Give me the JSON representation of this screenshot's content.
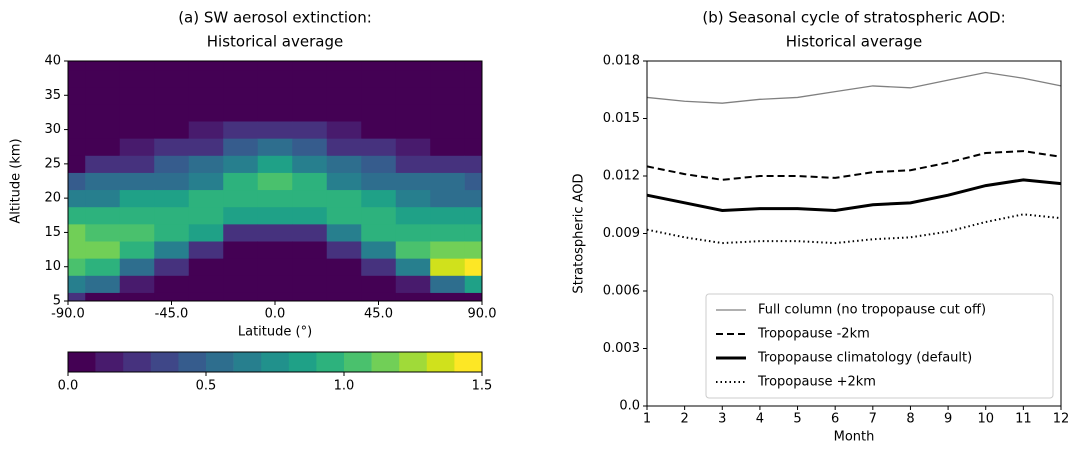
{
  "chart_data": [
    {
      "type": "contour",
      "title": [
        "(a) SW aerosol extinction:",
        "Historical average"
      ],
      "x_label": "Latitude (°)",
      "y_label": "Altitude (km)",
      "xlim": [
        -90,
        90
      ],
      "ylim": [
        5,
        40
      ],
      "xticks": [
        {
          "value": -90,
          "label": "-90.0"
        },
        {
          "value": -45,
          "label": "-45.0"
        },
        {
          "value": 0,
          "label": "0.0"
        },
        {
          "value": 45,
          "label": "45.0"
        },
        {
          "value": 90,
          "label": "90.0"
        }
      ],
      "yticks": [
        5,
        10,
        15,
        20,
        25,
        30,
        35,
        40
      ],
      "x": [
        -90,
        -75,
        -60,
        -45,
        -30,
        -15,
        0,
        15,
        30,
        45,
        60,
        75,
        90
      ],
      "y": [
        5,
        7.5,
        10,
        12.5,
        15,
        17.5,
        20,
        22.5,
        25,
        27.5,
        30,
        32.5,
        35,
        37.5,
        40
      ],
      "z": [
        [
          0.3,
          0.7,
          1.0,
          1.1,
          1.1,
          0.9,
          0.7,
          0.4,
          0,
          0,
          0,
          0,
          0,
          0,
          0
        ],
        [
          0,
          0.5,
          0.9,
          1.1,
          1.0,
          0.9,
          0.7,
          0.5,
          0.2,
          0,
          0,
          0,
          0,
          0,
          0
        ],
        [
          0,
          0.1,
          0.6,
          0.9,
          1.0,
          0.9,
          0.8,
          0.6,
          0.3,
          0.1,
          0,
          0,
          0,
          0,
          0
        ],
        [
          0,
          0,
          0.3,
          0.7,
          0.9,
          0.9,
          0.8,
          0.6,
          0.4,
          0.2,
          0,
          0,
          0,
          0,
          0
        ],
        [
          0,
          0,
          0,
          0.3,
          0.8,
          0.9,
          0.9,
          0.7,
          0.5,
          0.3,
          0.1,
          0,
          0,
          0,
          0
        ],
        [
          0,
          0,
          0,
          0,
          0.3,
          0.8,
          0.9,
          0.9,
          0.7,
          0.4,
          0.2,
          0,
          0,
          0,
          0
        ],
        [
          0,
          0,
          0,
          0,
          0.2,
          0.8,
          0.9,
          1.0,
          0.8,
          0.5,
          0.2,
          0,
          0,
          0,
          0
        ],
        [
          0,
          0,
          0,
          0,
          0.3,
          0.8,
          0.9,
          0.9,
          0.7,
          0.4,
          0.2,
          0,
          0,
          0,
          0
        ],
        [
          0,
          0,
          0,
          0.2,
          0.7,
          0.9,
          0.9,
          0.7,
          0.5,
          0.3,
          0.1,
          0,
          0,
          0,
          0
        ],
        [
          0,
          0,
          0.2,
          0.7,
          0.9,
          0.9,
          0.8,
          0.6,
          0.4,
          0.2,
          0,
          0,
          0,
          0,
          0
        ],
        [
          0,
          0.1,
          0.7,
          1.0,
          0.9,
          0.8,
          0.7,
          0.5,
          0.3,
          0.1,
          0,
          0,
          0,
          0,
          0
        ],
        [
          0,
          0.5,
          1.3,
          1.1,
          0.9,
          0.8,
          0.6,
          0.5,
          0.2,
          0,
          0,
          0,
          0,
          0,
          0
        ],
        [
          0,
          0.8,
          1.5,
          1.1,
          0.9,
          0.8,
          0.6,
          0.4,
          0.2,
          0,
          0,
          0,
          0,
          0,
          0
        ]
      ],
      "colorbar_lim": [
        0,
        1.5
      ],
      "colorbar_ticks": [
        {
          "value": 0,
          "label": "0.0"
        },
        {
          "value": 0.5,
          "label": "0.5"
        },
        {
          "value": 1,
          "label": "1.0"
        },
        {
          "value": 1.5,
          "label": "1.5"
        }
      ],
      "colors": [
        "#440154",
        "#481b6d",
        "#46327e",
        "#3f4788",
        "#365c8d",
        "#2e6e8e",
        "#277f8e",
        "#21918c",
        "#1fa187",
        "#2db27d",
        "#4ac16d",
        "#71cf57",
        "#a0da39",
        "#d0e11c",
        "#fde725"
      ]
    },
    {
      "type": "line",
      "title": [
        "(b) Seasonal cycle of stratospheric AOD:",
        "Historical average"
      ],
      "x_label": "Month",
      "y_label": "Stratospheric AOD",
      "xlim": [
        1,
        12
      ],
      "ylim": [
        0,
        0.018
      ],
      "xticks": [
        1,
        2,
        3,
        4,
        5,
        6,
        7,
        8,
        9,
        10,
        11,
        12
      ],
      "yticks": [
        {
          "value": 0,
          "label": "0.0"
        },
        0.003,
        0.006,
        0.009,
        0.012,
        0.015,
        0.018
      ],
      "x": [
        1,
        2,
        3,
        4,
        5,
        6,
        7,
        8,
        9,
        10,
        11,
        12
      ],
      "legend": "lower right",
      "series": [
        {
          "name": "Full column (no tropopause cut off)",
          "color": "#808080",
          "width": 1.3,
          "dash": "none",
          "values": [
            0.0161,
            0.0159,
            0.0158,
            0.016,
            0.0161,
            0.0164,
            0.0167,
            0.0166,
            0.017,
            0.0174,
            0.0171,
            0.0167
          ]
        },
        {
          "name": "Tropopause -2km",
          "color": "#000000",
          "width": 2,
          "dash": "7 4",
          "values": [
            0.0125,
            0.0121,
            0.0118,
            0.012,
            0.012,
            0.0119,
            0.0122,
            0.0123,
            0.0127,
            0.0132,
            0.0133,
            0.013
          ]
        },
        {
          "name": "Tropopause climatology (default)",
          "color": "#000000",
          "width": 3,
          "dash": "none",
          "values": [
            0.011,
            0.0106,
            0.0102,
            0.0103,
            0.0103,
            0.0102,
            0.0105,
            0.0106,
            0.011,
            0.0115,
            0.0118,
            0.0116
          ]
        },
        {
          "name": "Tropopause +2km",
          "color": "#000000",
          "width": 2,
          "dash": "1.5 3",
          "values": [
            0.0092,
            0.0088,
            0.0085,
            0.0086,
            0.0086,
            0.0085,
            0.0087,
            0.0088,
            0.0091,
            0.0096,
            0.01,
            0.0098
          ]
        }
      ]
    }
  ]
}
